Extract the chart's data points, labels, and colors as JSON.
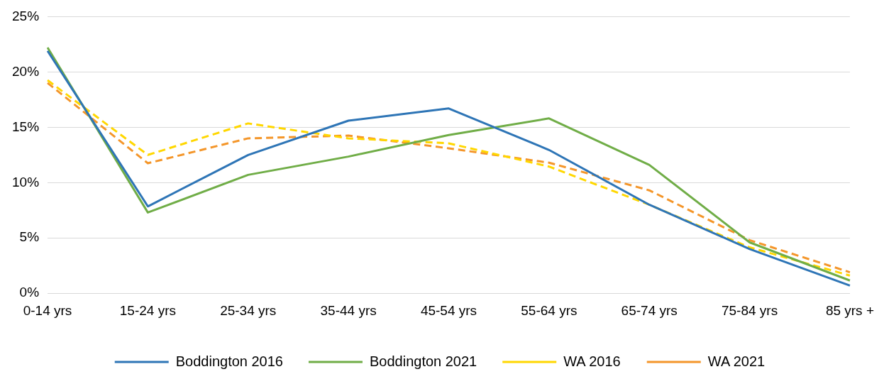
{
  "chart_data": {
    "type": "line",
    "categories": [
      "0-14 yrs",
      "15-24 yrs",
      "25-34 yrs",
      "35-44 yrs",
      "45-54 yrs",
      "55-64 yrs",
      "65-74 yrs",
      "75-84 yrs",
      "85 yrs +"
    ],
    "series": [
      {
        "name": "Boddington 2016",
        "color": "#2e75b6",
        "line_style": "solid",
        "values": [
          21.9,
          7.85,
          12.5,
          15.6,
          16.7,
          12.95,
          8.0,
          4.0,
          0.7
        ]
      },
      {
        "name": "Boddington 2021",
        "color": "#70ad47",
        "line_style": "solid",
        "values": [
          22.2,
          7.3,
          10.7,
          12.35,
          14.3,
          15.8,
          11.6,
          4.6,
          1.15
        ]
      },
      {
        "name": "WA 2016",
        "color": "#ffd700",
        "line_style": "dashed",
        "values": [
          19.25,
          12.5,
          15.35,
          14.0,
          13.55,
          11.45,
          8.0,
          4.15,
          1.6
        ]
      },
      {
        "name": "WA 2021",
        "color": "#f4962a",
        "line_style": "dashed",
        "values": [
          19.0,
          11.75,
          14.0,
          14.25,
          13.1,
          11.8,
          9.3,
          4.8,
          1.9
        ]
      }
    ],
    "ylim": [
      0,
      25
    ],
    "yticks": [
      {
        "value": 0,
        "label": "0%"
      },
      {
        "value": 5,
        "label": "5%"
      },
      {
        "value": 10,
        "label": "10%"
      },
      {
        "value": 15,
        "label": "15%"
      },
      {
        "value": 20,
        "label": "20%"
      },
      {
        "value": 25,
        "label": "25%"
      }
    ],
    "grid": "y",
    "legend": "bottom",
    "marker": "none"
  }
}
